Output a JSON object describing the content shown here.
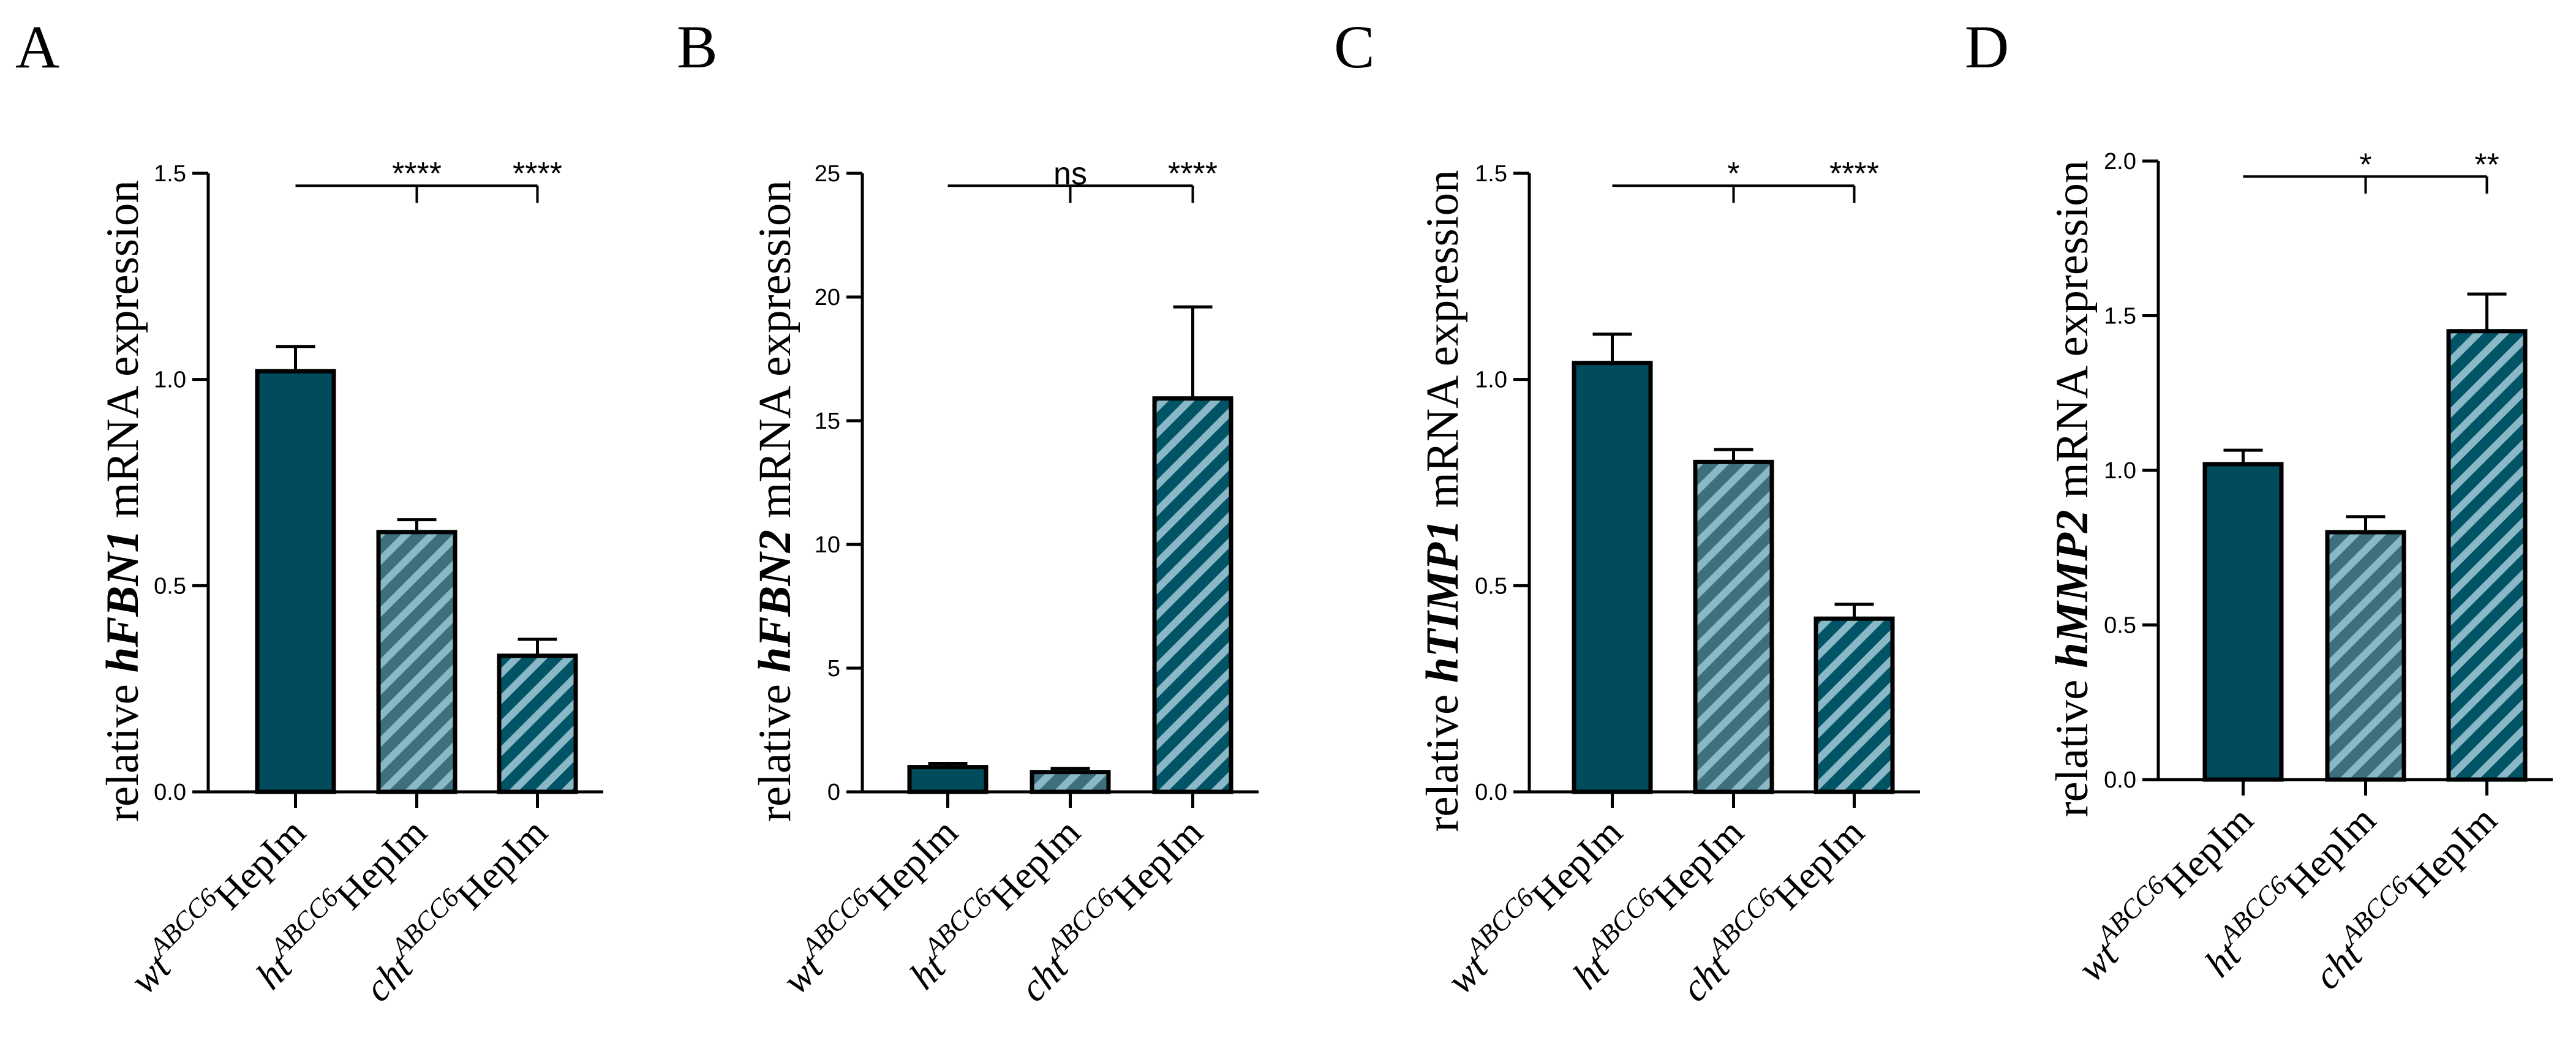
{
  "figure": {
    "fill_color": "#004b5c",
    "hatch_light_color": "#8ab8c6",
    "axis_color": "#000000"
  },
  "chart_data": [
    {
      "type": "bar",
      "panel": "A",
      "ylabel_prefix": "relative",
      "ylabel_gene": "hFBN1",
      "ylabel_suffix": "mRNA expression",
      "ylim": [
        0,
        1.5
      ],
      "yticks": [
        "0.0",
        "0.5",
        "1.0",
        "1.5"
      ],
      "ytick_values": [
        0,
        0.5,
        1.0,
        1.5
      ],
      "categories": [
        {
          "genotype": "wt",
          "superscript": "ABCC6",
          "cell": "HepIm"
        },
        {
          "genotype": "ht",
          "superscript": "ABCC6",
          "cell": "HepIm"
        },
        {
          "genotype": "cht",
          "superscript": "ABCC6",
          "cell": "HepIm"
        }
      ],
      "values": [
        1.02,
        0.63,
        0.33
      ],
      "errors": [
        0.06,
        0.03,
        0.04
      ],
      "patterns": [
        "solid",
        "hatch-gray",
        "hatch-teal"
      ],
      "significance": [
        {
          "compare_to": 1,
          "label": "****"
        },
        {
          "compare_to": 2,
          "label": "****"
        }
      ],
      "bracket_y": 1.47
    },
    {
      "type": "bar",
      "panel": "B",
      "ylabel_prefix": "relative",
      "ylabel_gene": "hFBN2",
      "ylabel_suffix": "mRNA expression",
      "ylim": [
        0,
        25
      ],
      "yticks": [
        "0",
        "5",
        "10",
        "15",
        "20",
        "25"
      ],
      "ytick_values": [
        0,
        5,
        10,
        15,
        20,
        25
      ],
      "categories": [
        {
          "genotype": "wt",
          "superscript": "ABCC6",
          "cell": "HepIm"
        },
        {
          "genotype": "ht",
          "superscript": "ABCC6",
          "cell": "HepIm"
        },
        {
          "genotype": "cht",
          "superscript": "ABCC6",
          "cell": "HepIm"
        }
      ],
      "values": [
        1.0,
        0.8,
        15.9
      ],
      "errors": [
        0.15,
        0.15,
        3.7
      ],
      "patterns": [
        "solid",
        "hatch-gray",
        "hatch-teal"
      ],
      "significance": [
        {
          "compare_to": 1,
          "label": "ns"
        },
        {
          "compare_to": 2,
          "label": "****"
        }
      ],
      "bracket_y": 24.5
    },
    {
      "type": "bar",
      "panel": "C",
      "ylabel_prefix": "relative",
      "ylabel_gene": "hTIMP1",
      "ylabel_suffix": "mRNA expression",
      "ylim": [
        0,
        1.5
      ],
      "yticks": [
        "0.0",
        "0.5",
        "1.0",
        "1.5"
      ],
      "ytick_values": [
        0,
        0.5,
        1.0,
        1.5
      ],
      "categories": [
        {
          "genotype": "wt",
          "superscript": "ABCC6",
          "cell": "HepIm"
        },
        {
          "genotype": "ht",
          "superscript": "ABCC6",
          "cell": "HepIm"
        },
        {
          "genotype": "cht",
          "superscript": "ABCC6",
          "cell": "HepIm"
        }
      ],
      "values": [
        1.04,
        0.8,
        0.42
      ],
      "errors": [
        0.07,
        0.03,
        0.035
      ],
      "patterns": [
        "solid",
        "hatch-gray",
        "hatch-teal"
      ],
      "significance": [
        {
          "compare_to": 1,
          "label": "*"
        },
        {
          "compare_to": 2,
          "label": "****"
        }
      ],
      "bracket_y": 1.47
    },
    {
      "type": "bar",
      "panel": "D",
      "ylabel_prefix": "relative",
      "ylabel_gene": "hMMP2",
      "ylabel_suffix": "mRNA expression",
      "ylim": [
        0,
        2.0
      ],
      "yticks": [
        "0.0",
        "0.5",
        "1.0",
        "1.5",
        "2.0"
      ],
      "ytick_values": [
        0,
        0.5,
        1.0,
        1.5,
        2.0
      ],
      "categories": [
        {
          "genotype": "wt",
          "superscript": "ABCC6",
          "cell": "HepIm"
        },
        {
          "genotype": "ht",
          "superscript": "ABCC6",
          "cell": "HepIm"
        },
        {
          "genotype": "cht",
          "superscript": "ABCC6",
          "cell": "HepIm"
        }
      ],
      "values": [
        1.02,
        0.8,
        1.45
      ],
      "errors": [
        0.045,
        0.05,
        0.12
      ],
      "patterns": [
        "solid",
        "hatch-gray",
        "hatch-teal"
      ],
      "significance": [
        {
          "compare_to": 1,
          "label": "*"
        },
        {
          "compare_to": 2,
          "label": "**"
        }
      ],
      "bracket_y": 1.95
    }
  ]
}
